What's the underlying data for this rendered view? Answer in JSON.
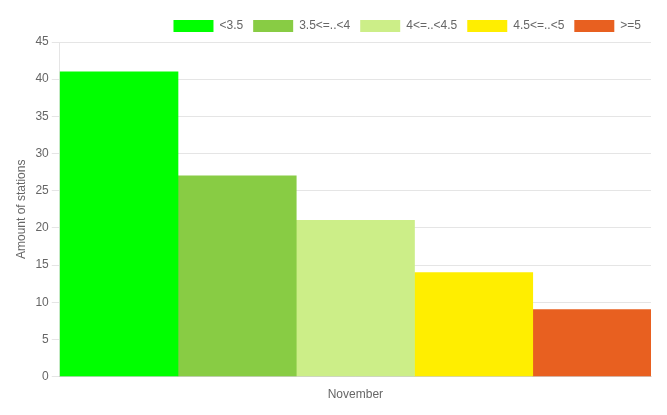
{
  "chart_data": {
    "type": "bar",
    "categories": [
      "November"
    ],
    "series": [
      {
        "name": "<3.5",
        "color": "#00ff00",
        "values": [
          41
        ]
      },
      {
        "name": "3.5<=..<4",
        "color": "#88cc44",
        "values": [
          27
        ]
      },
      {
        "name": "4<=..<4.5",
        "color": "#ccee88",
        "values": [
          21
        ]
      },
      {
        "name": "4.5<=..<5",
        "color": "#ffee00",
        "values": [
          14
        ]
      },
      {
        "name": ">=5",
        "color": "#e86020",
        "values": [
          9
        ]
      }
    ],
    "ylabel": "Amount of stations",
    "ylim": [
      0,
      45
    ],
    "yticks": [
      0,
      5,
      10,
      15,
      20,
      25,
      30,
      35,
      40,
      45
    ],
    "grid": true,
    "legend": "upper right"
  }
}
